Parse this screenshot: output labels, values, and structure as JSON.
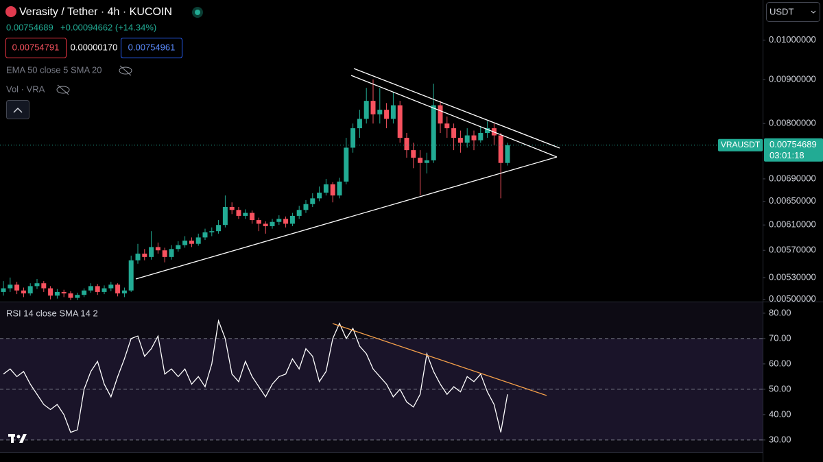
{
  "header": {
    "title": "Verasity / Tether · 4h · KUCOIN",
    "last": "0.00754689",
    "change": "+0.00094662 (+14.34%)",
    "bid": "0.00754791",
    "spread": "0.00000170",
    "ask": "0.00754961",
    "indicator_1": "EMA 50 close 5 SMA 20",
    "indicator_2": "Vol · VRA",
    "currency": "USDT"
  },
  "price_label": {
    "symbol": "VRAUSDT",
    "price": "0.00754689",
    "countdown": "03:01:18"
  },
  "chart_data": [
    {
      "type": "candlestick",
      "log_scale": true,
      "up_color": "#22ab94",
      "down_color": "#f7525f",
      "ylim": [
        0.00497,
        0.01113
      ],
      "yticks": [
        {
          "value": 0.01,
          "label": "0.01000000"
        },
        {
          "value": 0.009,
          "label": "0.00900000"
        },
        {
          "value": 0.008,
          "label": "0.00800000"
        },
        {
          "value": 0.0069,
          "label": "0.00690000"
        },
        {
          "value": 0.0065,
          "label": "0.00650000"
        },
        {
          "value": 0.0061,
          "label": "0.00610000"
        },
        {
          "value": 0.0057,
          "label": "0.00570000"
        },
        {
          "value": 0.0053,
          "label": "0.00530000"
        },
        {
          "value": 0.005,
          "label": "0.00500000"
        }
      ],
      "candles": [
        [
          0.0051,
          0.00525,
          0.00505,
          0.00515
        ],
        [
          0.00515,
          0.0053,
          0.0051,
          0.0052
        ],
        [
          0.0052,
          0.00524,
          0.00507,
          0.00512
        ],
        [
          0.00512,
          0.00516,
          0.00503,
          0.00508
        ],
        [
          0.00508,
          0.00522,
          0.00505,
          0.00518
        ],
        [
          0.00518,
          0.00528,
          0.00514,
          0.00522
        ],
        [
          0.00522,
          0.00525,
          0.0051,
          0.00515
        ],
        [
          0.00515,
          0.00518,
          0.005,
          0.00505
        ],
        [
          0.00505,
          0.00514,
          0.00501,
          0.0051
        ],
        [
          0.0051,
          0.00513,
          0.00503,
          0.00508
        ],
        [
          0.00508,
          0.00511,
          0.00499,
          0.00502
        ],
        [
          0.00502,
          0.00509,
          0.00499,
          0.00506
        ],
        [
          0.00506,
          0.00515,
          0.00503,
          0.00512
        ],
        [
          0.00512,
          0.00522,
          0.00509,
          0.00518
        ],
        [
          0.00518,
          0.00521,
          0.00506,
          0.0051
        ],
        [
          0.0051,
          0.00519,
          0.00507,
          0.00515
        ],
        [
          0.00515,
          0.00524,
          0.00511,
          0.0052
        ],
        [
          0.0052,
          0.00522,
          0.00504,
          0.00508
        ],
        [
          0.00508,
          0.00516,
          0.00503,
          0.00512
        ],
        [
          0.00512,
          0.00562,
          0.0051,
          0.00555
        ],
        [
          0.00555,
          0.0058,
          0.0055,
          0.00565
        ],
        [
          0.00565,
          0.00572,
          0.00555,
          0.0056
        ],
        [
          0.0056,
          0.006,
          0.00556,
          0.00575
        ],
        [
          0.00575,
          0.00582,
          0.00565,
          0.0057
        ],
        [
          0.0057,
          0.00574,
          0.00552,
          0.0056
        ],
        [
          0.0056,
          0.00578,
          0.00556,
          0.00572
        ],
        [
          0.00572,
          0.00584,
          0.00568,
          0.00578
        ],
        [
          0.00578,
          0.00592,
          0.00574,
          0.00585
        ],
        [
          0.00585,
          0.0059,
          0.00575,
          0.0058
        ],
        [
          0.0058,
          0.00596,
          0.00577,
          0.0059
        ],
        [
          0.0059,
          0.00604,
          0.00586,
          0.00598
        ],
        [
          0.00598,
          0.00606,
          0.00592,
          0.006
        ],
        [
          0.006,
          0.00618,
          0.00596,
          0.0061
        ],
        [
          0.0061,
          0.0066,
          0.00606,
          0.0064
        ],
        [
          0.0064,
          0.00648,
          0.00628,
          0.00635
        ],
        [
          0.00635,
          0.0064,
          0.0062,
          0.00625
        ],
        [
          0.00625,
          0.00636,
          0.0062,
          0.0063
        ],
        [
          0.0063,
          0.00634,
          0.00612,
          0.00618
        ],
        [
          0.00618,
          0.00622,
          0.006,
          0.00612
        ],
        [
          0.00612,
          0.00616,
          0.00596,
          0.00608
        ],
        [
          0.00608,
          0.0062,
          0.00604,
          0.00615
        ],
        [
          0.00615,
          0.00626,
          0.0061,
          0.0062
        ],
        [
          0.0062,
          0.00624,
          0.00606,
          0.00612
        ],
        [
          0.00612,
          0.0063,
          0.00608,
          0.00625
        ],
        [
          0.00625,
          0.00642,
          0.0062,
          0.00635
        ],
        [
          0.00635,
          0.00652,
          0.0063,
          0.00645
        ],
        [
          0.00645,
          0.00664,
          0.0064,
          0.00655
        ],
        [
          0.00655,
          0.00676,
          0.0065,
          0.00665
        ],
        [
          0.00665,
          0.0069,
          0.0066,
          0.0068
        ],
        [
          0.0068,
          0.00684,
          0.00648,
          0.0066
        ],
        [
          0.0066,
          0.00692,
          0.00655,
          0.00685
        ],
        [
          0.00685,
          0.0077,
          0.0068,
          0.0075
        ],
        [
          0.0075,
          0.008,
          0.0074,
          0.0079
        ],
        [
          0.0079,
          0.0083,
          0.0077,
          0.0081
        ],
        [
          0.0081,
          0.0088,
          0.008,
          0.0085
        ],
        [
          0.0085,
          0.009,
          0.008,
          0.0082
        ],
        [
          0.0082,
          0.0088,
          0.008,
          0.0083
        ],
        [
          0.0083,
          0.00845,
          0.0079,
          0.0081
        ],
        [
          0.0081,
          0.0087,
          0.008,
          0.0084
        ],
        [
          0.0084,
          0.0085,
          0.0076,
          0.0077
        ],
        [
          0.0077,
          0.0078,
          0.0073,
          0.00745
        ],
        [
          0.00745,
          0.0076,
          0.0071,
          0.0073
        ],
        [
          0.0073,
          0.00745,
          0.0066,
          0.0072
        ],
        [
          0.0072,
          0.0074,
          0.007,
          0.00725
        ],
        [
          0.00725,
          0.0089,
          0.0072,
          0.0084
        ],
        [
          0.0084,
          0.0085,
          0.0078,
          0.008
        ],
        [
          0.008,
          0.00815,
          0.0077,
          0.0079
        ],
        [
          0.0079,
          0.008,
          0.00745,
          0.0077
        ],
        [
          0.0077,
          0.00785,
          0.0074,
          0.0076
        ],
        [
          0.0076,
          0.0079,
          0.0075,
          0.00775
        ],
        [
          0.00775,
          0.00785,
          0.00745,
          0.00765
        ],
        [
          0.00765,
          0.00795,
          0.0076,
          0.0078
        ],
        [
          0.0078,
          0.00805,
          0.0077,
          0.0079
        ],
        [
          0.0079,
          0.008,
          0.00755,
          0.00775
        ],
        [
          0.00775,
          0.0078,
          0.00655,
          0.0072
        ],
        [
          0.0072,
          0.0076,
          0.00715,
          0.00755
        ]
      ]
    },
    {
      "type": "line",
      "title": "RSI 14 close SMA 14 2",
      "color": "#ffffff",
      "ylim": [
        25.1,
        84.3
      ],
      "yticks": [
        {
          "value": 80,
          "label": "80.00"
        },
        {
          "value": 70,
          "label": "70.00"
        },
        {
          "value": 60,
          "label": "60.00"
        },
        {
          "value": 50,
          "label": "50.00"
        },
        {
          "value": 40,
          "label": "40.00"
        },
        {
          "value": 30,
          "label": "30.00"
        }
      ],
      "band": [
        30,
        70
      ],
      "dashed_levels": [
        70,
        50,
        30
      ],
      "values": [
        56,
        58,
        55,
        57,
        52,
        48,
        44,
        42,
        44,
        40,
        33,
        34,
        50,
        57,
        61,
        52,
        47,
        55,
        62,
        70,
        71,
        63,
        66,
        71,
        56,
        58,
        55,
        58,
        52,
        55,
        51,
        60,
        77,
        70,
        56,
        53,
        61,
        55,
        51,
        47,
        52,
        55,
        56,
        62,
        58,
        66,
        63,
        53,
        57,
        70,
        76,
        70,
        74,
        67,
        64,
        58,
        55,
        52,
        47,
        50,
        45,
        43,
        48,
        64,
        57,
        52,
        48,
        51,
        49,
        55,
        53,
        56,
        49,
        44,
        33,
        48
      ]
    }
  ]
}
